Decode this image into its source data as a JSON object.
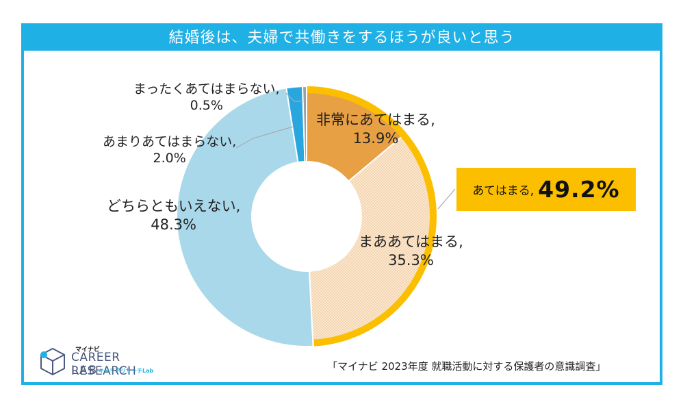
{
  "title": "結婚後は、夫婦で共働きをするほうが良いと思う",
  "highlight": {
    "label": "あてはまる,",
    "value": "49.2%"
  },
  "source": "「マイナビ 2023年度 就職活動に対する保護者の意識調査」",
  "logo": {
    "small": "マイナビ",
    "main": "CAREER RESEARCH",
    "sub": "LAB",
    "jp": "キャリアリサーチLab"
  },
  "chart_data": {
    "type": "pie",
    "categories": [
      "非常にあてはまる",
      "まああてはまる",
      "どちらともいえない",
      "あまりあてはまらない",
      "まったくあてはまらない"
    ],
    "values": [
      13.9,
      35.3,
      48.3,
      2.0,
      0.5
    ],
    "labels": [
      {
        "line1": "非常にあてはまる,",
        "line2": "13.9%"
      },
      {
        "line1": "まああてはまる,",
        "line2": "35.3%"
      },
      {
        "line1": "どちらともいえない,",
        "line2": "48.3%"
      },
      {
        "line1": "あまりあてはまらない,",
        "line2": "2.0%"
      },
      {
        "line1": "まったくあてはまらない,",
        "line2": "0.5%"
      }
    ],
    "colors": [
      "#e8a045",
      "#fbe2c4",
      "#a9d8ea",
      "#2aa6df",
      "#9aa0a6"
    ],
    "highlight_ring_color": "#fbbf00"
  }
}
